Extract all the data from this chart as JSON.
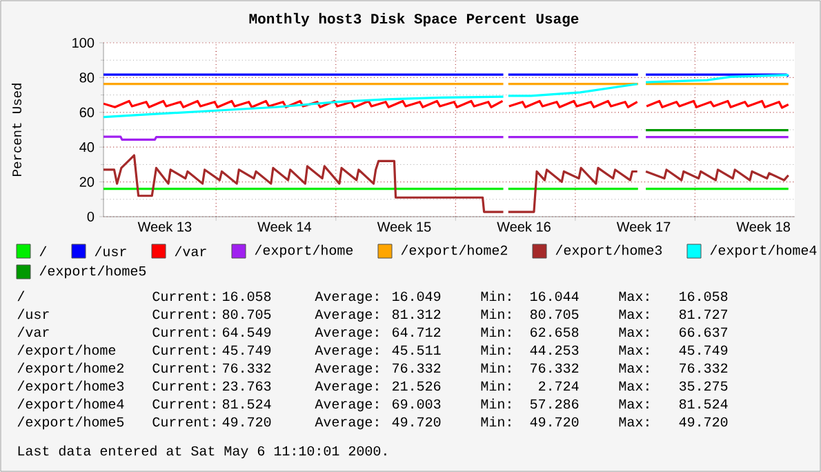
{
  "chart_data": {
    "type": "line",
    "title": "Monthly host3 Disk Space Percent Usage",
    "ylabel": "Percent Used",
    "xlim": [
      "2000-03-27T10:00",
      "2000-05-06T20:00"
    ],
    "ylim": [
      0,
      100
    ],
    "yticks": [
      0,
      20,
      40,
      60,
      80,
      100
    ],
    "xticks": [
      {
        "value": "2000-03-31",
        "label": "Week 13"
      },
      {
        "value": "2000-04-03",
        "label": null
      },
      {
        "value": "2000-04-07",
        "label": "Week 14"
      },
      {
        "value": "2000-04-10",
        "label": null
      },
      {
        "value": "2000-04-14",
        "label": "Week 15"
      },
      {
        "value": "2000-04-17",
        "label": null
      },
      {
        "value": "2000-04-21",
        "label": "Week 16"
      },
      {
        "value": "2000-04-24",
        "label": null
      },
      {
        "value": "2000-04-28",
        "label": "Week 17"
      },
      {
        "value": "2000-05-01",
        "label": null
      },
      {
        "value": "2000-05-05",
        "label": "Week 18"
      }
    ],
    "grid": true,
    "legend": "bottom",
    "line_style": "solid",
    "marker": "none",
    "series": [
      {
        "name": "/",
        "color": "#00ee00",
        "x": [
          "2000-03-27T10:00",
          "2000-04-19T19:00",
          "2000-04-19T22:00",
          "2000-04-20T02:00",
          "2000-04-27T16:00",
          "2000-04-27T21:00",
          "2000-04-28T03:00",
          "2000-05-06T11:00"
        ],
        "values": [
          16.05,
          16.05,
          null,
          16.05,
          16.05,
          null,
          16.05,
          16.05
        ]
      },
      {
        "name": "/usr",
        "color": "#0000ff",
        "x": [
          "2000-03-27T10:00",
          "2000-04-19T19:00",
          "2000-04-19T22:00",
          "2000-04-20T02:00",
          "2000-04-27T16:00",
          "2000-04-27T21:00",
          "2000-04-28T03:00",
          "2000-05-06T08:00",
          "2000-05-06T11:00"
        ],
        "values": [
          81.7,
          81.7,
          null,
          81.7,
          81.7,
          null,
          81.7,
          81.7,
          80.7
        ]
      },
      {
        "name": "/var",
        "color": "#ff0000",
        "x": [
          "2000-03-27T10:00",
          "2000-03-28T02:00",
          "2000-03-28T22:00",
          "2000-03-29T02:00",
          "2000-03-29T22:00",
          "2000-03-30T02:00",
          "2000-03-30T22:00",
          "2000-03-31T02:00",
          "2000-03-31T22:00",
          "2000-04-01T02:00",
          "2000-04-01T22:00",
          "2000-04-02T02:00",
          "2000-04-02T22:00",
          "2000-04-03T02:00",
          "2000-04-03T22:00",
          "2000-04-04T02:00",
          "2000-04-04T22:00",
          "2000-04-05T02:00",
          "2000-04-05T22:00",
          "2000-04-06T02:00",
          "2000-04-06T22:00",
          "2000-04-07T02:00",
          "2000-04-07T22:00",
          "2000-04-08T02:00",
          "2000-04-08T22:00",
          "2000-04-09T02:00",
          "2000-04-09T22:00",
          "2000-04-10T02:00",
          "2000-04-10T22:00",
          "2000-04-11T02:00",
          "2000-04-11T22:00",
          "2000-04-12T02:00",
          "2000-04-12T22:00",
          "2000-04-13T02:00",
          "2000-04-13T22:00",
          "2000-04-14T02:00",
          "2000-04-14T22:00",
          "2000-04-15T02:00",
          "2000-04-15T22:00",
          "2000-04-16T02:00",
          "2000-04-16T22:00",
          "2000-04-17T02:00",
          "2000-04-17T22:00",
          "2000-04-18T02:00",
          "2000-04-18T22:00",
          "2000-04-19T02:00",
          "2000-04-19T18:00",
          "2000-04-19T22:00",
          "2000-04-20T03:00",
          "2000-04-20T22:00",
          "2000-04-21T02:00",
          "2000-04-21T22:00",
          "2000-04-22T02:00",
          "2000-04-22T22:00",
          "2000-04-23T02:00",
          "2000-04-23T22:00",
          "2000-04-24T02:00",
          "2000-04-24T22:00",
          "2000-04-25T02:00",
          "2000-04-25T22:00",
          "2000-04-26T02:00",
          "2000-04-26T22:00",
          "2000-04-27T02:00",
          "2000-04-27T15:00",
          "2000-04-27T21:00",
          "2000-04-28T04:00",
          "2000-04-28T22:00",
          "2000-04-29T02:00",
          "2000-04-29T22:00",
          "2000-04-30T02:00",
          "2000-04-30T22:00",
          "2000-05-01T02:00",
          "2000-05-01T22:00",
          "2000-05-02T02:00",
          "2000-05-02T22:00",
          "2000-05-03T02:00",
          "2000-05-03T22:00",
          "2000-05-04T02:00",
          "2000-05-04T22:00",
          "2000-05-05T02:00",
          "2000-05-05T22:00",
          "2000-05-06T02:00",
          "2000-05-06T11:00"
        ],
        "values": [
          65,
          63,
          66.5,
          63.5,
          66,
          63,
          66.5,
          63.5,
          66,
          63,
          66.5,
          63.5,
          66,
          63,
          66.5,
          63.5,
          66,
          63,
          66.5,
          63.5,
          66,
          63,
          66.5,
          63.5,
          66,
          63,
          66.5,
          63.5,
          66,
          63,
          66.5,
          63.5,
          66,
          63,
          66.5,
          63.5,
          66,
          63,
          66.5,
          63.5,
          66,
          63,
          66.5,
          63.5,
          66,
          63,
          66.5,
          null,
          63.5,
          66,
          63,
          66.5,
          63.5,
          66,
          63,
          66.5,
          63.5,
          66,
          63,
          66.5,
          63.5,
          66,
          63,
          66,
          null,
          63.5,
          66.5,
          63,
          66,
          63.5,
          66.5,
          63,
          66,
          63.5,
          66.5,
          63,
          66,
          63.5,
          66.5,
          63,
          66,
          62.7,
          64.5
        ]
      },
      {
        "name": "/export/home",
        "color": "#a020f0",
        "x": [
          "2000-03-27T10:00",
          "2000-03-28T10:00",
          "2000-03-28T12:00",
          "2000-03-30T10:00",
          "2000-03-30T12:00",
          "2000-04-19T19:00",
          "2000-04-19T22:00",
          "2000-04-20T02:00",
          "2000-04-27T16:00",
          "2000-04-27T21:00",
          "2000-04-28T03:00",
          "2000-05-06T11:00"
        ],
        "values": [
          46,
          46,
          44.3,
          44.3,
          45.75,
          45.75,
          null,
          45.75,
          45.75,
          null,
          45.75,
          45.75
        ]
      },
      {
        "name": "/export/home2",
        "color": "#ffa500",
        "x": [
          "2000-03-27T10:00",
          "2000-04-19T19:00",
          "2000-04-19T22:00",
          "2000-04-20T02:00",
          "2000-04-27T16:00",
          "2000-04-27T21:00",
          "2000-04-28T03:00",
          "2000-05-06T11:00"
        ],
        "values": [
          76.3,
          76.3,
          null,
          76.3,
          76.3,
          null,
          76.3,
          76.3
        ]
      },
      {
        "name": "/export/home3",
        "color": "#a52a2a",
        "x": [
          "2000-03-27T10:00",
          "2000-03-28T01:00",
          "2000-03-28T05:00",
          "2000-03-28T11:00",
          "2000-03-29T05:00",
          "2000-03-29T11:00",
          "2000-03-30T06:00",
          "2000-03-30T12:00",
          "2000-03-31T05:00",
          "2000-03-31T08:00",
          "2000-04-01T05:00",
          "2000-04-01T08:00",
          "2000-04-02T05:00",
          "2000-04-02T08:00",
          "2000-04-03T05:00",
          "2000-04-03T08:00",
          "2000-04-04T05:00",
          "2000-04-04T08:00",
          "2000-04-05T05:00",
          "2000-04-05T08:00",
          "2000-04-06T05:00",
          "2000-04-06T08:00",
          "2000-04-07T05:00",
          "2000-04-07T08:00",
          "2000-04-08T05:00",
          "2000-04-08T08:00",
          "2000-04-09T05:00",
          "2000-04-09T08:00",
          "2000-04-10T05:00",
          "2000-04-10T08:00",
          "2000-04-11T05:00",
          "2000-04-11T08:00",
          "2000-04-12T05:00",
          "2000-04-12T08:00",
          "2000-04-12T12:00",
          "2000-04-13T10:00",
          "2000-04-13T12:00",
          "2000-04-18T14:00",
          "2000-04-18T16:00",
          "2000-04-19T19:00",
          "2000-04-19T22:00",
          "2000-04-20T02:00",
          "2000-04-21T14:00",
          "2000-04-21T18:00",
          "2000-04-22T05:00",
          "2000-04-22T08:00",
          "2000-04-23T05:00",
          "2000-04-23T08:00",
          "2000-04-24T05:00",
          "2000-04-24T08:00",
          "2000-04-25T05:00",
          "2000-04-25T08:00",
          "2000-04-26T05:00",
          "2000-04-26T08:00",
          "2000-04-27T05:00",
          "2000-04-27T08:00",
          "2000-04-27T15:00",
          "2000-04-27T21:00",
          "2000-04-28T03:00",
          "2000-04-29T05:00",
          "2000-04-29T08:00",
          "2000-04-30T05:00",
          "2000-04-30T08:00",
          "2000-05-01T05:00",
          "2000-05-01T08:00",
          "2000-05-02T05:00",
          "2000-05-02T08:00",
          "2000-05-03T05:00",
          "2000-05-03T08:00",
          "2000-05-04T05:00",
          "2000-05-04T08:00",
          "2000-05-05T05:00",
          "2000-05-05T08:00",
          "2000-05-06T05:00",
          "2000-05-06T11:00"
        ],
        "values": [
          27,
          27,
          19,
          28,
          35.3,
          12,
          12,
          28,
          19,
          27,
          22,
          26,
          19,
          27,
          21,
          26,
          19,
          27,
          22,
          26,
          19,
          28,
          21,
          27,
          19,
          29,
          22,
          29,
          19,
          28,
          21,
          27,
          19,
          27,
          32,
          32,
          11,
          11,
          2.7,
          2.7,
          null,
          2.7,
          2.7,
          26,
          21,
          27,
          20,
          26,
          22,
          28,
          19,
          28,
          22,
          27,
          21,
          26,
          26,
          null,
          26,
          22,
          27,
          21,
          26,
          22,
          26,
          21,
          27,
          22,
          27,
          21,
          26,
          22,
          25,
          21,
          23.8
        ]
      },
      {
        "name": "/export/home4",
        "color": "#00ffff",
        "x": [
          "2000-03-27T10:00",
          "2000-03-29T10:00",
          "2000-04-03T00:00",
          "2000-04-06T12:00",
          "2000-04-10T02:00",
          "2000-04-13T00:00",
          "2000-04-16T05:00",
          "2000-04-19T19:00",
          "2000-04-19T22:00",
          "2000-04-20T02:00",
          "2000-04-21T10:00",
          "2000-04-24T07:00",
          "2000-04-27T15:00",
          "2000-04-27T21:00",
          "2000-04-28T03:00",
          "2000-05-01T17:00",
          "2000-05-03T02:00",
          "2000-05-06T11:00"
        ],
        "values": [
          57.3,
          58.5,
          61,
          63,
          66,
          67.5,
          68.5,
          69,
          null,
          69.5,
          69.5,
          71.5,
          76.3,
          null,
          77.3,
          78.5,
          80.4,
          81.5
        ]
      },
      {
        "name": "/export/home5",
        "color": "#009900",
        "x": [
          "2000-04-28T03:00",
          "2000-05-06T11:00"
        ],
        "values": [
          49.72,
          49.72
        ]
      }
    ],
    "annotations": [
      "/",
      "Current:",
      "16.058",
      "Average:",
      "16.049",
      "Min:",
      "16.044",
      "Max:",
      "16.058",
      "/usr",
      "Current:",
      "80.705",
      "Average:",
      "81.312",
      "Min:",
      "80.705",
      "Max:",
      "81.727",
      "/var",
      "Current:",
      "64.549",
      "Average:",
      "64.712",
      "Min:",
      "62.658",
      "Max:",
      "66.637",
      "/export/home",
      "Current:",
      "45.749",
      "Average:",
      "45.511",
      "Min:",
      "44.253",
      "Max:",
      "45.749",
      "/export/home2",
      "Current:",
      "76.332",
      "Average:",
      "76.332",
      "Min:",
      "76.332",
      "Max:",
      "76.332",
      "/export/home3",
      "Current:",
      "23.763",
      "Average:",
      "21.526",
      "Min:",
      "2.724",
      "Max:",
      "35.275",
      "/export/home4",
      "Current:",
      "81.524",
      "Average:",
      "69.003",
      "Min:",
      "57.286",
      "Max:",
      "81.524",
      "/export/home5",
      "Current:",
      "49.720",
      "Average:",
      "49.720",
      "Min:",
      "49.720",
      "Max:",
      "49.720",
      "Last data entered at Sat May  6 11:10:01 2000."
    ]
  }
}
